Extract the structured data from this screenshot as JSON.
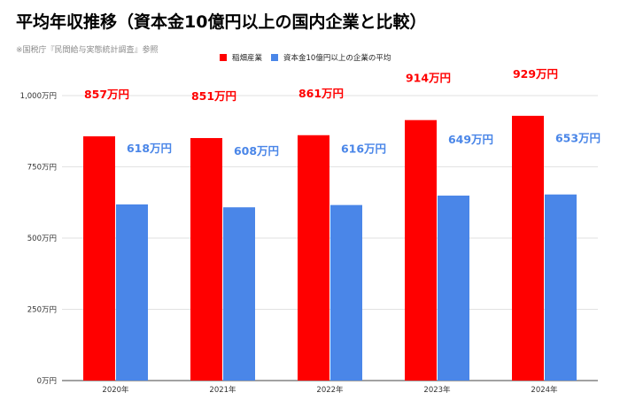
{
  "chart_data": {
    "type": "bar",
    "title": "平均年収推移（資本金10億円以上の国内企業と比較）",
    "subtitle": "※国税庁『民間給与実態統計調査』参照",
    "categories": [
      "2020年",
      "2021年",
      "2022年",
      "2023年",
      "2024年"
    ],
    "series": [
      {
        "name": "稲畑産業",
        "color": "#ff0000",
        "values": [
          857,
          851,
          861,
          914,
          929
        ],
        "labels": [
          "857万円",
          "851万円",
          "861万円",
          "914万円",
          "929万円"
        ]
      },
      {
        "name": "資本金10億円以上の企業の平均",
        "color": "#4a86e8",
        "values": [
          618,
          608,
          616,
          649,
          653
        ],
        "labels": [
          "618万円",
          "608万円",
          "616万円",
          "649万円",
          "653万円"
        ]
      }
    ],
    "ylim": [
      0,
      1000
    ],
    "yticks": [
      0,
      250,
      500,
      750,
      1000
    ],
    "ytick_labels": [
      "0万円",
      "250万円",
      "500万円",
      "750万円",
      "1,000万円"
    ],
    "grid": true,
    "legend_position": "top"
  }
}
